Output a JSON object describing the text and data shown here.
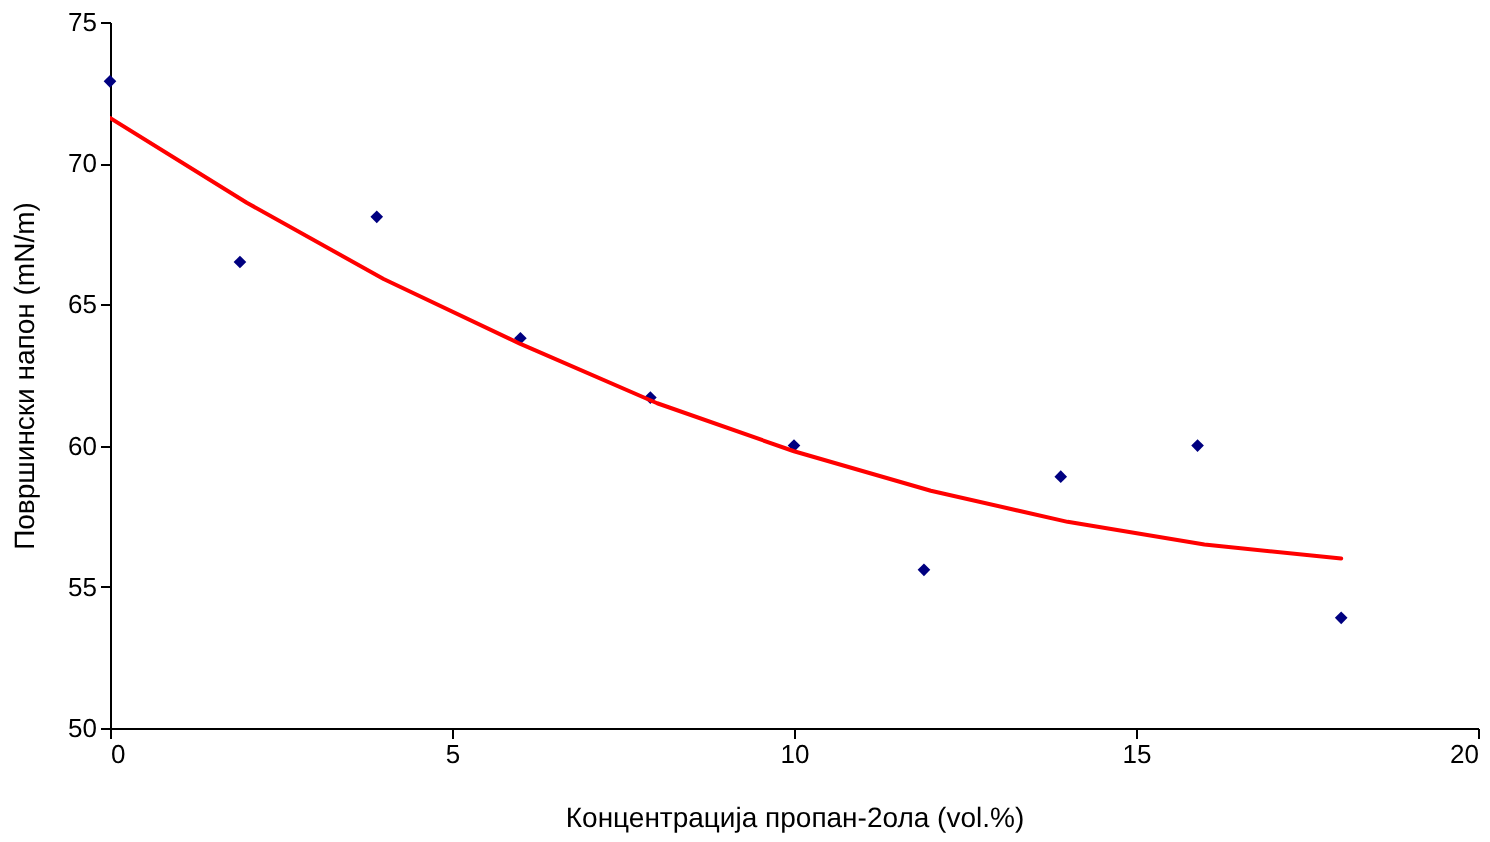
{
  "chart_data": {
    "type": "scatter",
    "xlabel": "Концентрација пропан-2ола (vol.%)",
    "ylabel": "Површински напон (mN/m)",
    "xlim": [
      0,
      20
    ],
    "xticks": [
      0,
      5,
      10,
      15,
      20
    ],
    "ylim": [
      50,
      75
    ],
    "yticks": [
      50,
      55,
      60,
      65,
      70,
      75
    ],
    "grid": false,
    "legend": false,
    "series": [
      {
        "color": "#000080",
        "marker": "diamond",
        "x": [
          0,
          1.9,
          3.9,
          6.0,
          7.9,
          10.0,
          11.9,
          13.9,
          15.9,
          18.0
        ],
        "values": [
          72.9,
          66.5,
          68.1,
          63.8,
          61.7,
          60.0,
          55.6,
          58.9,
          60.0,
          53.9
        ]
      },
      {
        "type": "line",
        "color": "#ff0000",
        "line_style": "solid",
        "marker": "none",
        "x": [
          0,
          2,
          4,
          6,
          8,
          10,
          12,
          14,
          16,
          18
        ],
        "values": [
          71.6,
          68.6,
          65.9,
          63.6,
          61.5,
          59.8,
          58.4,
          57.3,
          56.5,
          56.0
        ]
      }
    ]
  }
}
